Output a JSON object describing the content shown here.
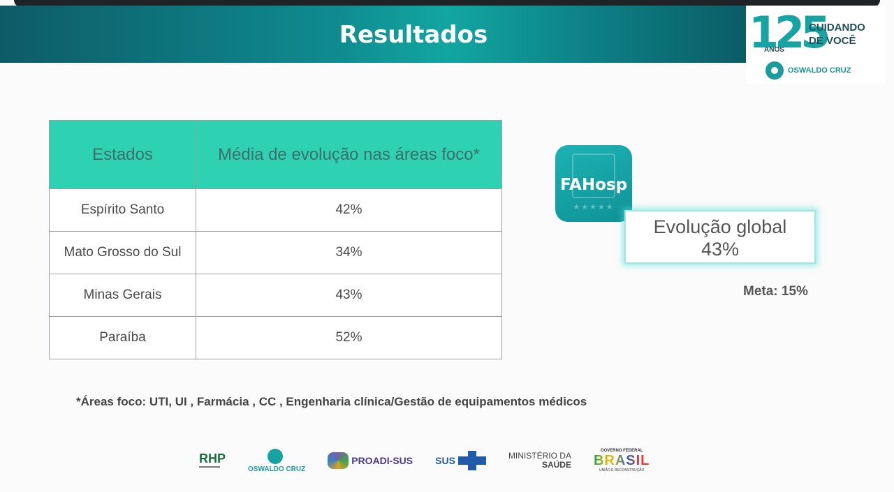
{
  "header": {
    "title": "Resultados",
    "logo": {
      "number": "125",
      "anos": "ANOS",
      "tagline_line1": "CUIDANDO",
      "tagline_line2": "DE VOCÊ",
      "brand": "OSWALDO CRUZ"
    }
  },
  "table": {
    "headers": [
      "Estados",
      "Média de evolução nas áreas foco*"
    ],
    "rows": [
      {
        "state": "Espírito Santo",
        "value": "42%"
      },
      {
        "state": "Mato Grosso do Sul",
        "value": "34%"
      },
      {
        "state": "Minas Gerais",
        "value": "43%"
      },
      {
        "state": "Paraíba",
        "value": "52%"
      }
    ]
  },
  "app_icon": {
    "label": "FAHosp",
    "icon": "hospital-building-icon"
  },
  "global": {
    "label": "Evolução global",
    "value": "43%"
  },
  "meta": "Meta: 15%",
  "footnote": "*Áreas foco: UTI, UI , Farmácia , CC , Engenharia clínica/Gestão de equipamentos médicos",
  "footer": {
    "rhp": "RHP",
    "oswaldo": "OSWALDO CRUZ",
    "proadi": "PROADI-SUS",
    "sus": "SUS",
    "ministerio_line1": "MINISTÉRIO DA",
    "ministerio_line2": "SAÚDE",
    "governo": "GOVERNO FEDERAL",
    "brasil": "BRASIL",
    "uniao": "UNIÃO E RECONSTRUÇÃO"
  },
  "colors": {
    "header_teal": "#0f8b8f",
    "table_header": "#2ed1b1",
    "glow": "#50dcd2"
  }
}
